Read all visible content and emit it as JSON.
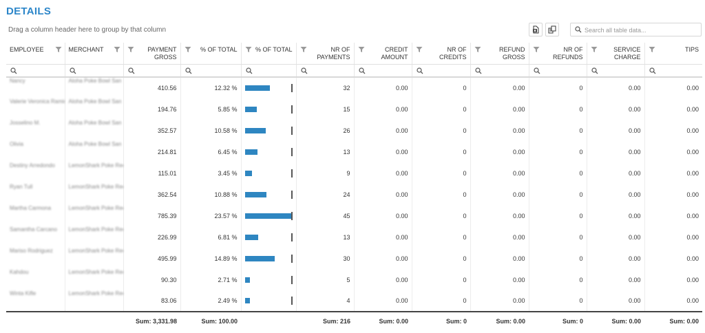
{
  "title": "DETAILS",
  "group_hint": "Drag a column header here to group by that column",
  "toolbar": {
    "excel_icon": "export-excel-icon",
    "chooser_icon": "column-chooser-icon",
    "search_placeholder": "Search all table data..."
  },
  "columns": [
    {
      "label": "EMPLOYEE",
      "align": "left"
    },
    {
      "label": "MERCHANT",
      "align": "left"
    },
    {
      "label": "PAYMENT GROSS",
      "align": "right"
    },
    {
      "label": "% OF TOTAL",
      "align": "right"
    },
    {
      "label": "% OF TOTAL",
      "align": "right"
    },
    {
      "label": "NR OF PAYMENTS",
      "align": "right"
    },
    {
      "label": "CREDIT AMOUNT",
      "align": "right"
    },
    {
      "label": "NR OF CREDITS",
      "align": "right"
    },
    {
      "label": "REFUND GROSS",
      "align": "right"
    },
    {
      "label": "NR OF REFUNDS",
      "align": "right"
    },
    {
      "label": "SERVICE CHARGE",
      "align": "right"
    },
    {
      "label": "TIPS",
      "align": "right"
    }
  ],
  "rows": [
    {
      "employee": "Nancy",
      "merchant": "Aloha Poke Bowl San Bernardino",
      "payment_gross": "410.56",
      "pct_total": "12.32 %",
      "pct_value": 12.32,
      "nr_payments": "32",
      "credit_amount": "0.00",
      "nr_credits": "0",
      "refund_gross": "0.00",
      "nr_refunds": "0",
      "service_charge": "0.00",
      "tips": "0.00"
    },
    {
      "employee": "Valerie Veronica Ramirez",
      "merchant": "Aloha Poke Bowl San Bernardino",
      "payment_gross": "194.76",
      "pct_total": "5.85 %",
      "pct_value": 5.85,
      "nr_payments": "15",
      "credit_amount": "0.00",
      "nr_credits": "0",
      "refund_gross": "0.00",
      "nr_refunds": "0",
      "service_charge": "0.00",
      "tips": "0.00"
    },
    {
      "employee": "Josselino M.",
      "merchant": "Aloha Poke Bowl San Bernardino",
      "payment_gross": "352.57",
      "pct_total": "10.58 %",
      "pct_value": 10.58,
      "nr_payments": "26",
      "credit_amount": "0.00",
      "nr_credits": "0",
      "refund_gross": "0.00",
      "nr_refunds": "0",
      "service_charge": "0.00",
      "tips": "0.00"
    },
    {
      "employee": "Olivia",
      "merchant": "Aloha Poke Bowl San Bernardino",
      "payment_gross": "214.81",
      "pct_total": "6.45 %",
      "pct_value": 6.45,
      "nr_payments": "13",
      "credit_amount": "0.00",
      "nr_credits": "0",
      "refund_gross": "0.00",
      "nr_refunds": "0",
      "service_charge": "0.00",
      "tips": "0.00"
    },
    {
      "employee": "Destiny Arredondo",
      "merchant": "LemonShark Poke Redlands",
      "payment_gross": "115.01",
      "pct_total": "3.45 %",
      "pct_value": 3.45,
      "nr_payments": "9",
      "credit_amount": "0.00",
      "nr_credits": "0",
      "refund_gross": "0.00",
      "nr_refunds": "0",
      "service_charge": "0.00",
      "tips": "0.00"
    },
    {
      "employee": "Ryan Tull",
      "merchant": "LemonShark Poke Redlands",
      "payment_gross": "362.54",
      "pct_total": "10.88 %",
      "pct_value": 10.88,
      "nr_payments": "24",
      "credit_amount": "0.00",
      "nr_credits": "0",
      "refund_gross": "0.00",
      "nr_refunds": "0",
      "service_charge": "0.00",
      "tips": "0.00"
    },
    {
      "employee": "Martha Carmona",
      "merchant": "LemonShark Poke Redlands",
      "payment_gross": "785.39",
      "pct_total": "23.57 %",
      "pct_value": 23.57,
      "nr_payments": "45",
      "credit_amount": "0.00",
      "nr_credits": "0",
      "refund_gross": "0.00",
      "nr_refunds": "0",
      "service_charge": "0.00",
      "tips": "0.00"
    },
    {
      "employee": "Samantha Carcano",
      "merchant": "LemonShark Poke Redlands",
      "payment_gross": "226.99",
      "pct_total": "6.81 %",
      "pct_value": 6.81,
      "nr_payments": "13",
      "credit_amount": "0.00",
      "nr_credits": "0",
      "refund_gross": "0.00",
      "nr_refunds": "0",
      "service_charge": "0.00",
      "tips": "0.00"
    },
    {
      "employee": "Mariso Rodriguez",
      "merchant": "LemonShark Poke Redlands",
      "payment_gross": "495.99",
      "pct_total": "14.89 %",
      "pct_value": 14.89,
      "nr_payments": "30",
      "credit_amount": "0.00",
      "nr_credits": "0",
      "refund_gross": "0.00",
      "nr_refunds": "0",
      "service_charge": "0.00",
      "tips": "0.00"
    },
    {
      "employee": "Kahdou",
      "merchant": "LemonShark Poke Redlands",
      "payment_gross": "90.30",
      "pct_total": "2.71 %",
      "pct_value": 2.71,
      "nr_payments": "5",
      "credit_amount": "0.00",
      "nr_credits": "0",
      "refund_gross": "0.00",
      "nr_refunds": "0",
      "service_charge": "0.00",
      "tips": "0.00"
    },
    {
      "employee": "Winta Kifle",
      "merchant": "LemonShark Poke Redlands",
      "payment_gross": "83.06",
      "pct_total": "2.49 %",
      "pct_value": 2.49,
      "nr_payments": "4",
      "credit_amount": "0.00",
      "nr_credits": "0",
      "refund_gross": "0.00",
      "nr_refunds": "0",
      "service_charge": "0.00",
      "tips": "0.00"
    }
  ],
  "bar_max_value": 23.57,
  "bar_color": "#2e86c1",
  "accent_color": "#2c86c9",
  "totals": {
    "payment_gross": "Sum: 3,331.98",
    "pct_total": "Sum: 100.00",
    "nr_payments": "Sum: 216",
    "credit_amount": "Sum: 0.00",
    "nr_credits": "Sum: 0",
    "refund_gross": "Sum: 0.00",
    "nr_refunds": "Sum: 0",
    "service_charge": "Sum: 0.00",
    "tips": "Sum: 0.00"
  }
}
